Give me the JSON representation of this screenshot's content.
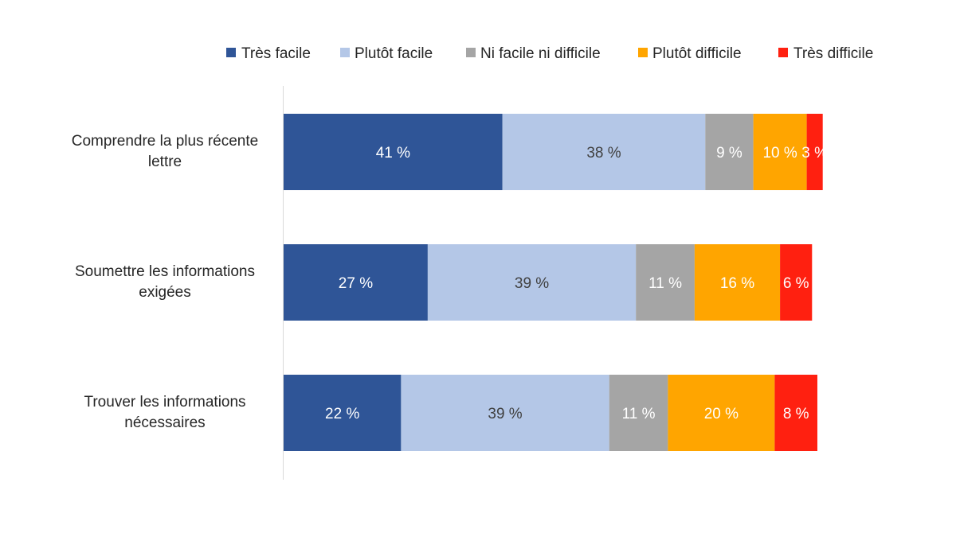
{
  "chart_data": {
    "type": "bar",
    "orientation": "horizontal",
    "stacked": true,
    "title": "",
    "xlabel": "",
    "ylabel": "",
    "xlim": [
      0,
      100
    ],
    "grid": false,
    "legend_position": "top",
    "categories": [
      [
        "Comprendre la plus récente",
        "lettre"
      ],
      [
        "Soumettre les informations",
        "exigées"
      ],
      [
        "Trouver les informations",
        "nécessaires"
      ]
    ],
    "series": [
      {
        "name": "Très facile",
        "color": "#2F5597",
        "label_color": "#ffffff",
        "values": [
          41,
          27,
          22
        ],
        "labels": [
          "41 %",
          "27 %",
          "22 %"
        ]
      },
      {
        "name": "Plutôt facile",
        "color": "#B4C7E7",
        "label_color": "#404040",
        "values": [
          38,
          39,
          39
        ],
        "labels": [
          "38 %",
          "39 %",
          "39 %"
        ]
      },
      {
        "name": "Ni facile ni difficile",
        "color": "#A5A5A5",
        "label_color": "#ffffff",
        "values": [
          9,
          11,
          11
        ],
        "labels": [
          "9 %",
          "11 %",
          "11 %"
        ]
      },
      {
        "name": "Plutôt difficile",
        "color": "#FFA500",
        "label_color": "#ffffff",
        "values": [
          10,
          16,
          20
        ],
        "labels": [
          "10 %",
          "16 %",
          "20 %"
        ]
      },
      {
        "name": "Très difficile",
        "color": "#FF2010",
        "label_color": "#ffffff",
        "values": [
          3,
          6,
          8
        ],
        "labels": [
          "3 %",
          "6 %",
          "8 %"
        ]
      }
    ]
  }
}
